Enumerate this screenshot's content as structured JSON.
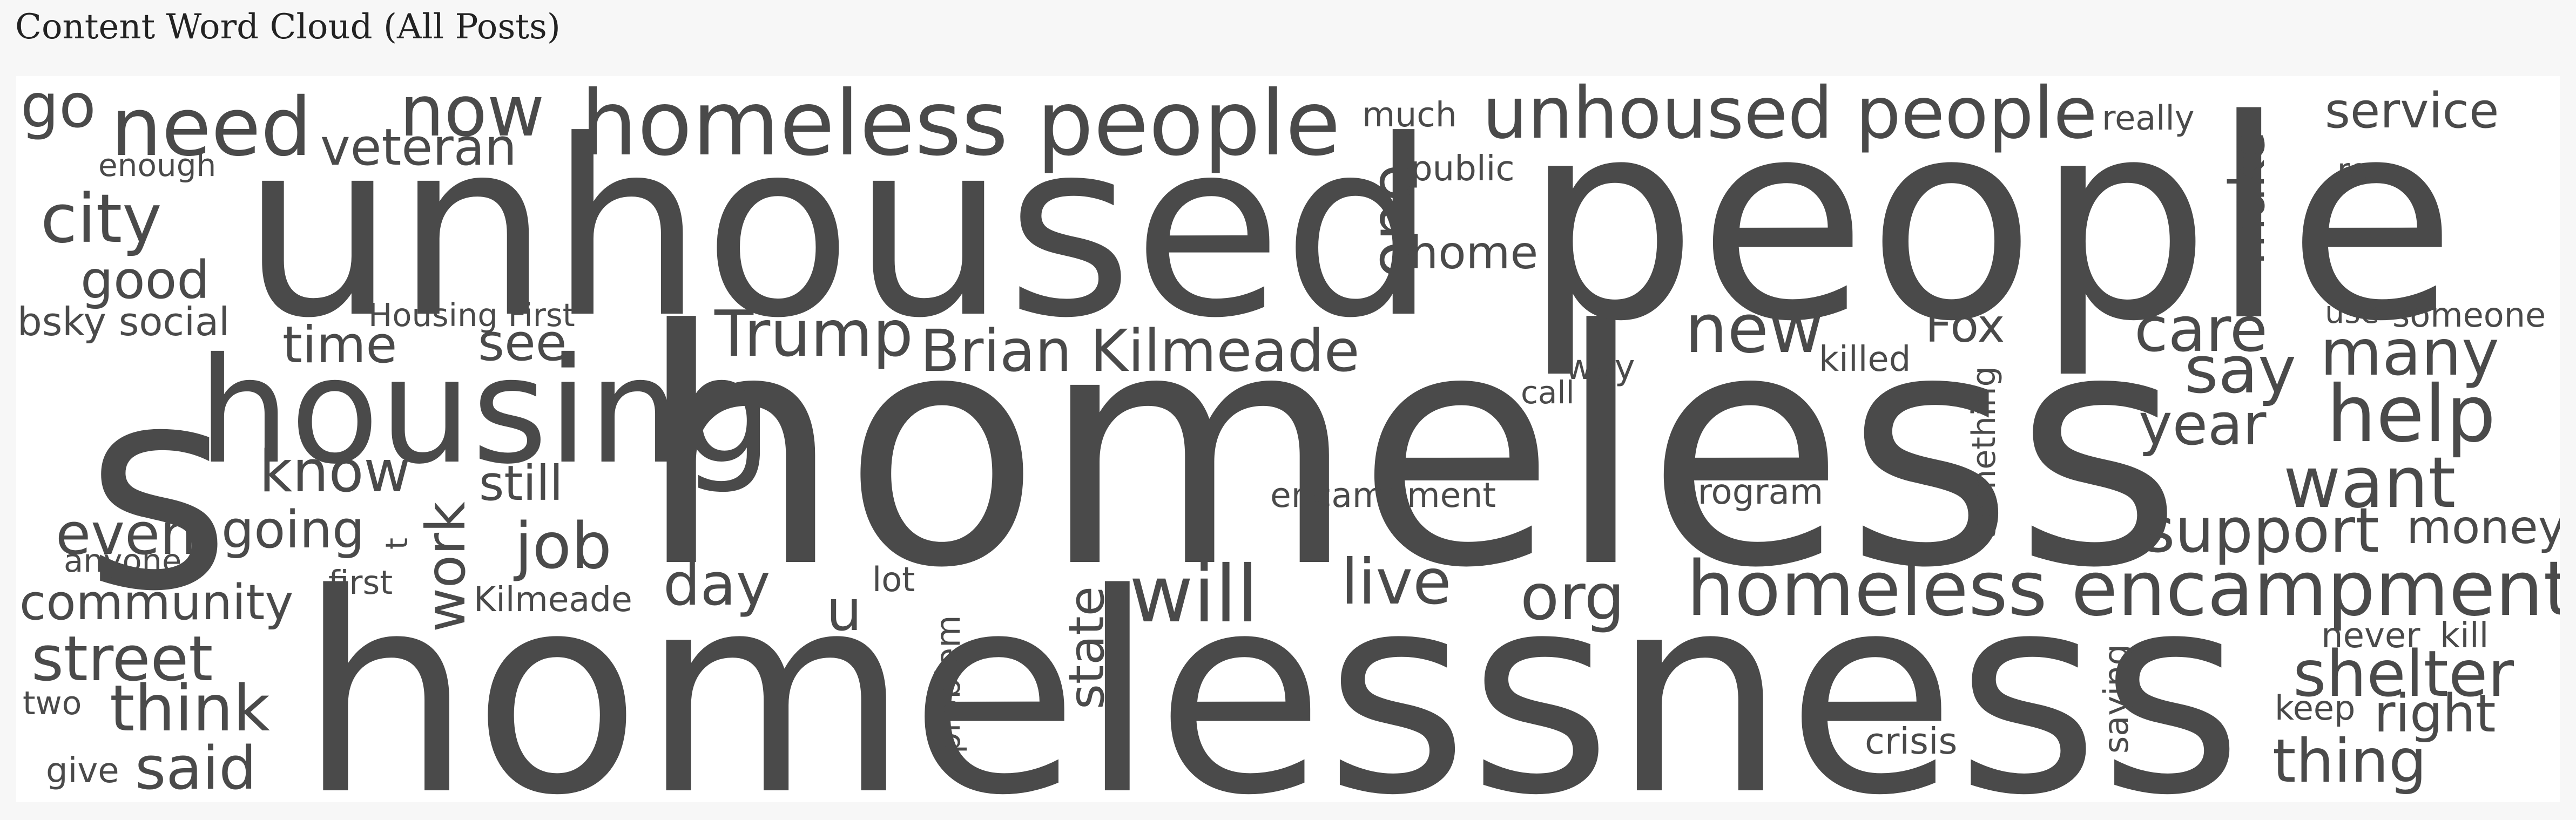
{
  "title": "Content Word Cloud (All Posts)",
  "word_color": "#4a4a4a",
  "background_color": "#ffffff",
  "words": [
    "homelessness",
    "homeless",
    "unhoused",
    "people",
    "s",
    "housing",
    "homeless people",
    "unhoused people",
    "homeless encampment",
    "need",
    "now",
    "go",
    "city",
    "veteran",
    "enough",
    "good",
    "bsky social",
    "Housing First",
    "time",
    "see",
    "Trump",
    "Brian Kilmeade",
    "know",
    "still",
    "even",
    "going",
    "job",
    "work",
    "t",
    "anyone",
    "first",
    "Kilmeade",
    "community",
    "day",
    "u",
    "lot",
    "will",
    "live",
    "org",
    "state",
    "problem",
    "street",
    "think",
    "two",
    "said",
    "give",
    "much",
    "public",
    "one",
    "home",
    "really",
    "make",
    "service",
    "re",
    "new",
    "killed",
    "Fox",
    "way",
    "call",
    "care",
    "use",
    "someone",
    "many",
    "say",
    "year",
    "help",
    "want",
    "encampment",
    "program",
    "something",
    "support",
    "money",
    "never",
    "kill",
    "shelter",
    "keep",
    "right",
    "saying",
    "crisis",
    "thing"
  ]
}
